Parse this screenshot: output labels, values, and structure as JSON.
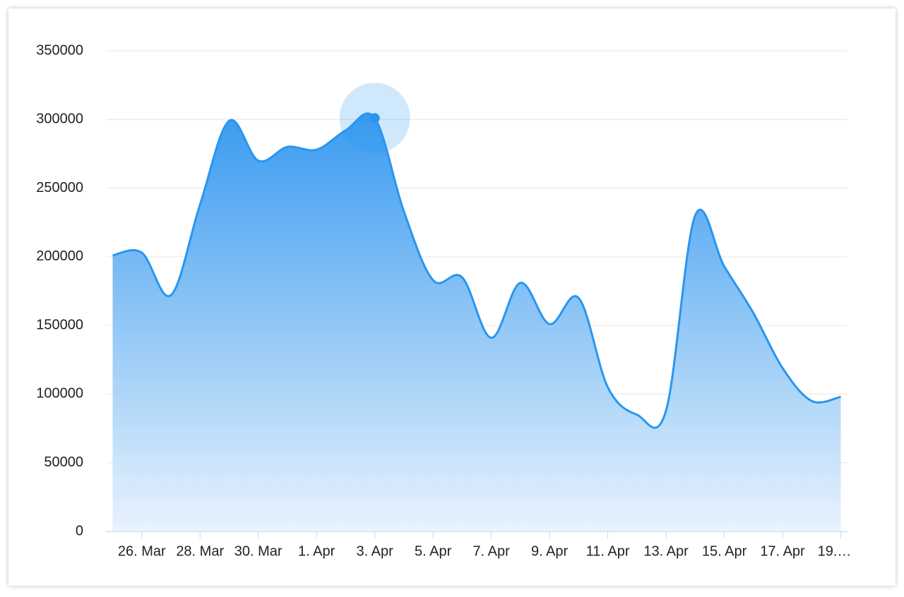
{
  "chart_data": {
    "type": "area",
    "categories": [
      null,
      "26. Mar",
      null,
      "28. Mar",
      null,
      "30. Mar",
      null,
      "1. Apr",
      null,
      "3. Apr",
      null,
      "5. Apr",
      null,
      "7. Apr",
      null,
      "9. Apr",
      null,
      "11. Apr",
      null,
      "13. Apr",
      null,
      "15. Apr",
      null,
      "17. Apr",
      null,
      "19.…"
    ],
    "values": [
      201000,
      203000,
      172000,
      238000,
      299000,
      270000,
      280000,
      278000,
      292000,
      301000,
      233000,
      183000,
      185000,
      141000,
      181000,
      151000,
      170000,
      105000,
      85000,
      88000,
      230000,
      193000,
      159000,
      119000,
      95000,
      98000
    ],
    "color": "#2896ef",
    "ylim": [
      0,
      350000
    ],
    "yticks": [
      0,
      50000,
      100000,
      150000,
      200000,
      250000,
      300000,
      350000
    ],
    "grid": true
  }
}
